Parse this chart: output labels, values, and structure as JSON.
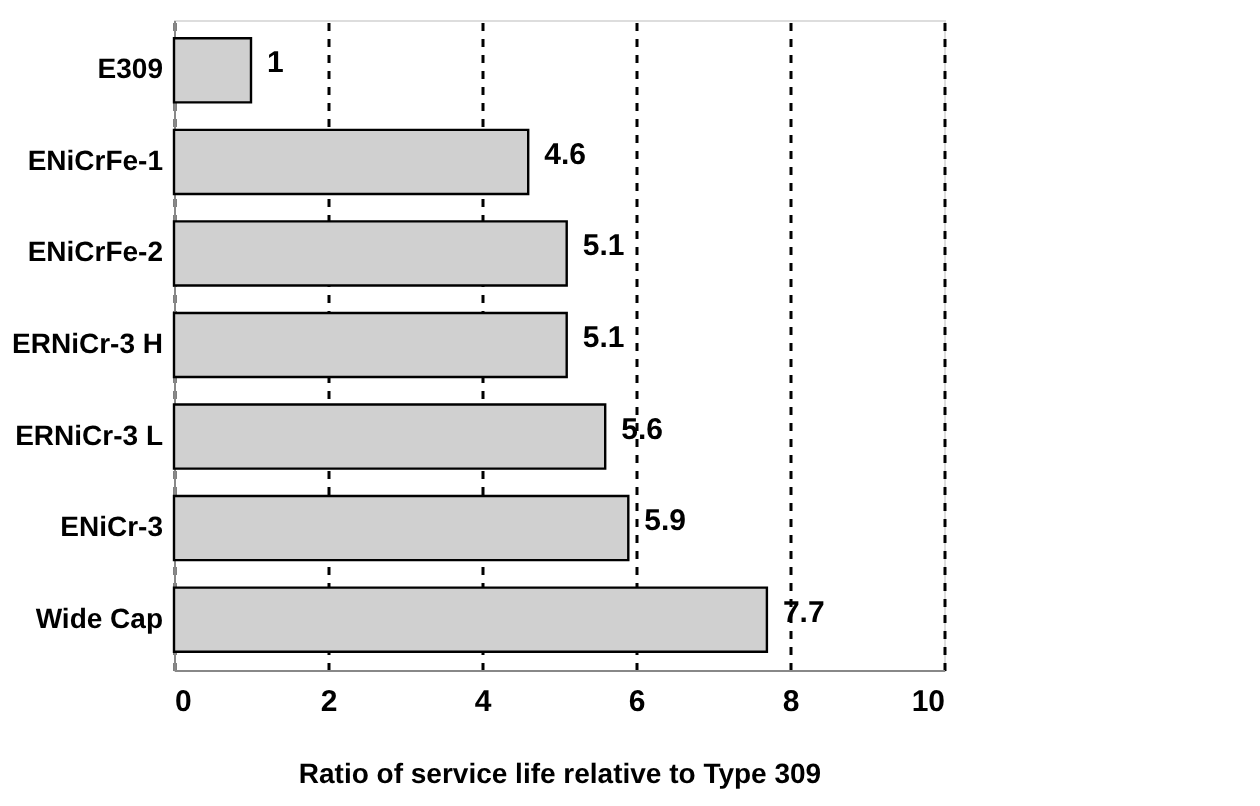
{
  "chart_data": {
    "type": "bar",
    "orientation": "horizontal",
    "xlabel": "Ratio of service life relative to Type 309",
    "categories": [
      "E309",
      "ENiCrFe-1",
      "ENiCrFe-2",
      "ERNiCr-3 H",
      "ERNiCr-3 L",
      "ENiCr-3",
      "Wide Cap"
    ],
    "values": [
      1,
      4.6,
      5.1,
      5.1,
      5.6,
      5.9,
      7.7
    ],
    "color": "#d0d0d0",
    "xlim": [
      0,
      10
    ],
    "xticks": [
      0,
      2,
      4,
      6,
      8,
      10
    ],
    "grid": "x",
    "data_labels": true
  }
}
